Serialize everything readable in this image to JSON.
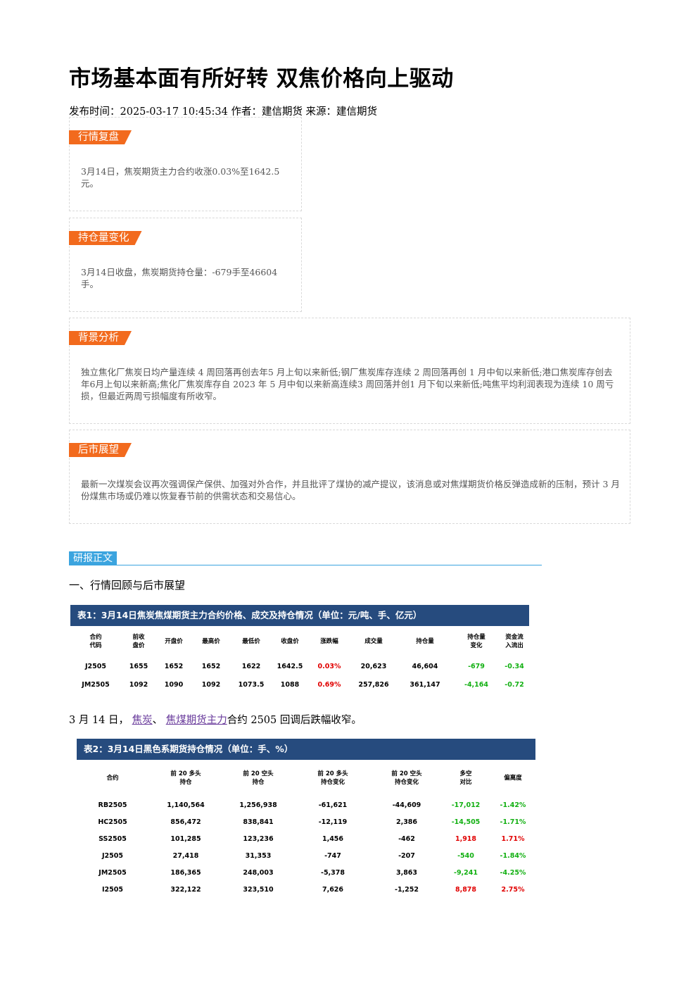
{
  "title": "市场基本面有所好转 双焦价格向上驱动",
  "meta": "发布时间：2025-03-17 10:45:34 作者：建信期货 来源：建信期货",
  "boxes": {
    "market_review": {
      "label": "行情复盘",
      "text": "3月14日，焦炭期货主力合约收涨0.03%至1642.5元。"
    },
    "position_change": {
      "label": "持仓量变化",
      "text": "3月14日收盘，焦炭期货持仓量：-679手至46604手。"
    },
    "background": {
      "label": "背景分析",
      "text": "独立焦化厂焦炭日均产量连续 4 周回落再创去年5 月上旬以来新低;钢厂焦炭库存连续 2 周回落再创 1 月中旬以来新低;港口焦炭库存创去年6月上旬以来新高;焦化厂焦炭库存自 2023 年 5 月中旬以来新高连续3 周回落并创1 月下旬以来新低;吨焦平均利润表现为连续 10 周亏损，但最近两周亏损幅度有所收窄。"
    },
    "outlook": {
      "label": "后市展望",
      "text": "最新一次煤炭会议再次强调保产保供、加强对外合作，并且批评了煤协的减产提议，该消息或对焦煤期货价格反弹造成新的压制，预计 3 月份煤焦市场或仍难以恢复春节前的供需状态和交易信心。"
    }
  },
  "section": {
    "label": "研报正文",
    "heading": "一、行情回顾与后市展望"
  },
  "table1": {
    "title": "表1：3月14日焦炭焦煤期货主力合约价格、成交及持仓情况（单位：元/吨、手、亿元）",
    "headers": [
      [
        "合约",
        "代码"
      ],
      [
        "前收",
        "盘价"
      ],
      [
        "开盘价"
      ],
      [
        "最高价"
      ],
      [
        "最低价"
      ],
      [
        "收盘价"
      ],
      [
        "涨跌幅"
      ],
      [
        "成交量"
      ],
      [
        "持仓量"
      ],
      [
        "持仓量",
        "变化"
      ],
      [
        "资金流",
        "入流出"
      ]
    ],
    "rows": [
      [
        "J2505",
        "1655",
        "1652",
        "1652",
        "1622",
        "1642.5",
        "0.03%",
        "20,623",
        "46,604",
        "-679",
        "-0.34"
      ],
      [
        "JM2505",
        "1092",
        "1090",
        "1092",
        "1073.5",
        "1088",
        "0.69%",
        "257,826",
        "361,147",
        "-4,164",
        "-0.72"
      ]
    ]
  },
  "para": {
    "prefix": "3 月 14 日，",
    "link1": "焦炭",
    "sep": "、",
    "link2": "焦煤期货主力",
    "suffix": "合约 2505 回调后跌幅收窄。"
  },
  "table2": {
    "title": "表2：3月14日黑色系期货持仓情况（单位：手、%）",
    "headers": [
      [
        "合约"
      ],
      [
        "前 20 多头",
        "持仓"
      ],
      [
        "前 20 空头",
        "持仓"
      ],
      [
        "前 20 多头",
        "持仓变化"
      ],
      [
        "前 20 空头",
        "持仓变化"
      ],
      [
        "多空",
        "对比"
      ],
      [
        "偏离度"
      ]
    ],
    "rows": [
      [
        "RB2505",
        "1,140,564",
        "1,256,938",
        "-61,621",
        "-44,609",
        "-17,012",
        "-1.42%"
      ],
      [
        "HC2505",
        "856,472",
        "838,841",
        "-12,119",
        "2,386",
        "-14,505",
        "-1.71%"
      ],
      [
        "SS2505",
        "101,285",
        "123,236",
        "1,456",
        "-462",
        "1,918",
        "1.71%"
      ],
      [
        "J2505",
        "27,418",
        "31,353",
        "-747",
        "-207",
        "-540",
        "-1.84%"
      ],
      [
        "JM2505",
        "186,365",
        "248,003",
        "-5,378",
        "3,863",
        "-9,241",
        "-4.25%"
      ],
      [
        "I2505",
        "322,122",
        "323,510",
        "7,626",
        "-1,252",
        "8,878",
        "2.75%"
      ]
    ]
  },
  "colors": {
    "tag_orange": "#f26a1d",
    "section_blue": "#3ba4df",
    "table_header": "#264b7e",
    "up_red": "#e10000",
    "down_green": "#12b012"
  }
}
